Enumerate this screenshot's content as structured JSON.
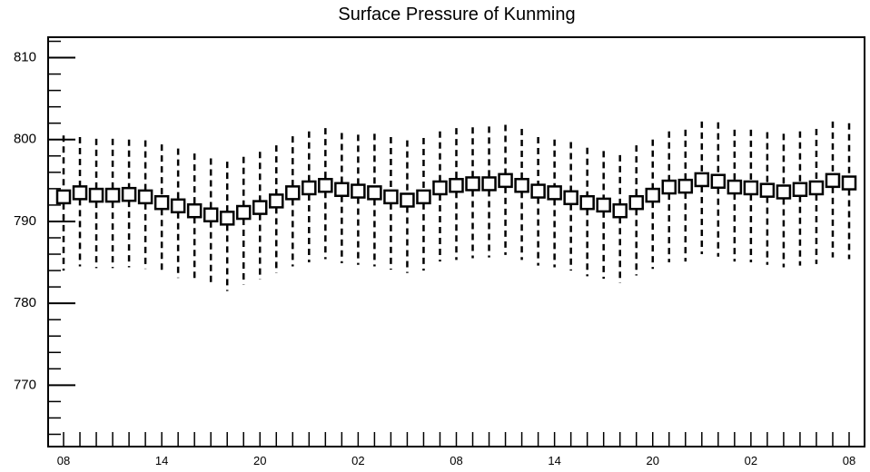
{
  "chart_data": {
    "type": "scatter",
    "title": "Surface Pressure of Kunming",
    "xlabel": "",
    "ylabel": "",
    "ylim": [
      762.5,
      812.5
    ],
    "y_ticks": [
      "770",
      "780",
      "790",
      "800",
      "810"
    ],
    "x_tick_labels": [
      "08",
      "14",
      "20",
      "02",
      "08",
      "14",
      "20",
      "02",
      "08"
    ],
    "x_tick_hours": [
      0,
      6,
      12,
      18,
      24,
      30,
      36,
      42,
      48
    ],
    "grid": false,
    "legend": "none",
    "series": [
      {
        "x": [
          0,
          1,
          2,
          3,
          4,
          5,
          6,
          7,
          8,
          9,
          10,
          11,
          12,
          13,
          14,
          15,
          16,
          17,
          18,
          19,
          20,
          21,
          22,
          23,
          24,
          25,
          26,
          27,
          28,
          29,
          30,
          31,
          32,
          33,
          34,
          35,
          36,
          37,
          38,
          39,
          40,
          41,
          42,
          43,
          44,
          45,
          46,
          47,
          48
        ],
        "mean": [
          793.0,
          793.5,
          793.2,
          793.2,
          793.3,
          793.0,
          792.3,
          791.9,
          791.3,
          790.8,
          790.4,
          791.1,
          791.7,
          792.5,
          793.5,
          794.1,
          794.4,
          793.9,
          793.7,
          793.5,
          793.0,
          792.6,
          793.0,
          794.1,
          794.4,
          794.6,
          794.6,
          795.0,
          794.4,
          793.7,
          793.5,
          792.9,
          792.3,
          792.0,
          791.3,
          792.3,
          793.2,
          794.2,
          794.3,
          795.1,
          794.9,
          794.2,
          794.1,
          793.8,
          793.6,
          793.9,
          794.1,
          795.0,
          794.7
        ],
        "high": [
          800.5,
          800.3,
          800.1,
          800.1,
          800.0,
          799.9,
          799.4,
          798.9,
          798.3,
          797.7,
          797.3,
          797.9,
          798.5,
          799.3,
          800.4,
          801.0,
          801.4,
          800.8,
          800.6,
          800.7,
          800.3,
          799.9,
          800.2,
          801.0,
          801.4,
          801.5,
          801.6,
          801.8,
          801.3,
          800.3,
          800.0,
          799.7,
          799.0,
          798.6,
          798.1,
          799.3,
          800.0,
          801.0,
          801.2,
          802.2,
          802.1,
          801.2,
          801.2,
          800.9,
          800.7,
          801.0,
          801.3,
          802.2,
          802.0
        ],
        "low": [
          784.0,
          784.5,
          784.3,
          784.3,
          784.4,
          784.2,
          783.6,
          783.1,
          782.6,
          782.1,
          781.5,
          782.3,
          782.9,
          783.7,
          784.5,
          785.0,
          785.4,
          784.9,
          784.7,
          784.5,
          784.1,
          783.7,
          784.0,
          785.1,
          785.3,
          785.5,
          785.6,
          785.9,
          785.3,
          784.6,
          784.4,
          784.0,
          783.3,
          783.0,
          782.5,
          783.4,
          784.2,
          785.0,
          785.1,
          786.0,
          785.7,
          785.1,
          785.0,
          784.7,
          784.4,
          784.6,
          784.8,
          785.6,
          785.4
        ]
      }
    ]
  }
}
